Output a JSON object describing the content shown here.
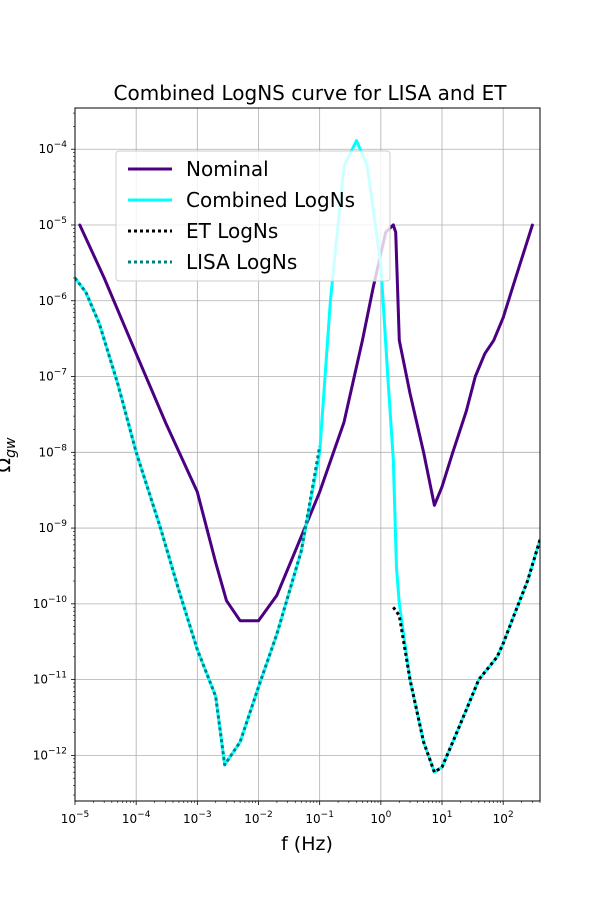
{
  "chart_data": {
    "type": "line",
    "title": "Combined LogNS curve for LISA and ET",
    "xlabel": "f (Hz)",
    "ylabel": "Ω_gw",
    "x_scale": "log",
    "y_scale": "log",
    "xlim": [
      1e-05,
      400
    ],
    "ylim": [
      2.5e-13,
      0.00035
    ],
    "grid": true,
    "legend_position": "upper-left",
    "x_ticks": [
      {
        "value": 1e-05,
        "base": "10",
        "exp": "−5"
      },
      {
        "value": 0.0001,
        "base": "10",
        "exp": "−4"
      },
      {
        "value": 0.001,
        "base": "10",
        "exp": "−3"
      },
      {
        "value": 0.01,
        "base": "10",
        "exp": "−2"
      },
      {
        "value": 0.1,
        "base": "10",
        "exp": "−1"
      },
      {
        "value": 1,
        "base": "10",
        "exp": "0"
      },
      {
        "value": 10,
        "base": "10",
        "exp": "1"
      },
      {
        "value": 100,
        "base": "10",
        "exp": "2"
      }
    ],
    "y_ticks": [
      {
        "value": 1e-12,
        "base": "10",
        "exp": "−12"
      },
      {
        "value": 1e-11,
        "base": "10",
        "exp": "−11"
      },
      {
        "value": 1e-10,
        "base": "10",
        "exp": "−10"
      },
      {
        "value": 1e-09,
        "base": "10",
        "exp": "−9"
      },
      {
        "value": 1e-08,
        "base": "10",
        "exp": "−8"
      },
      {
        "value": 1e-07,
        "base": "10",
        "exp": "−7"
      },
      {
        "value": 1e-06,
        "base": "10",
        "exp": "−6"
      },
      {
        "value": 1e-05,
        "base": "10",
        "exp": "−5"
      },
      {
        "value": 0.0001,
        "base": "10",
        "exp": "−4"
      }
    ],
    "series": [
      {
        "name": "Nominal",
        "color": "#4b0082",
        "style": "solid",
        "segments": [
          [
            [
              1.2e-05,
              1e-05
            ],
            [
              3e-05,
              2e-06
            ],
            [
              0.0001,
              2e-07
            ],
            [
              0.0003,
              2.5e-08
            ],
            [
              0.001,
              3e-09
            ],
            [
              0.002,
              3.5e-10
            ],
            [
              0.003,
              1.1e-10
            ],
            [
              0.005,
              6e-11
            ],
            [
              0.01,
              6e-11
            ],
            [
              0.02,
              1.3e-10
            ],
            [
              0.04,
              5e-10
            ],
            [
              0.1,
              3e-09
            ],
            [
              0.25,
              2.5e-08
            ],
            [
              0.5,
              3e-07
            ],
            [
              0.75,
              1.5e-06
            ],
            [
              1.2,
              8e-06
            ],
            [
              1.6,
              1e-05
            ]
          ],
          [
            [
              1.6,
              1e-05
            ],
            [
              1.75,
              8e-06
            ],
            [
              2,
              3e-07
            ],
            [
              3,
              6e-08
            ],
            [
              5,
              1e-08
            ],
            [
              7.5,
              2e-09
            ],
            [
              10,
              3.5e-09
            ],
            [
              15,
              1e-08
            ],
            [
              25,
              3.5e-08
            ],
            [
              35,
              1e-07
            ],
            [
              50,
              2e-07
            ],
            [
              70,
              3e-07
            ],
            [
              100,
              6e-07
            ],
            [
              150,
              1.7e-06
            ],
            [
              300,
              1e-05
            ]
          ]
        ]
      },
      {
        "name": "Combined LogNs",
        "color": "#00ffff",
        "style": "solid",
        "segments": [
          [
            [
              1e-05,
              2e-06
            ],
            [
              1.5e-05,
              1.3e-06
            ],
            [
              2.5e-05,
              5e-07
            ],
            [
              5e-05,
              8e-08
            ],
            [
              0.0001,
              1e-08
            ],
            [
              0.00025,
              1e-09
            ],
            [
              0.0005,
              1.5e-10
            ],
            [
              0.001,
              2.5e-11
            ],
            [
              0.002,
              6e-12
            ],
            [
              0.0028,
              7.5e-13
            ],
            [
              0.005,
              1.5e-12
            ],
            [
              0.01,
              8e-12
            ],
            [
              0.02,
              4e-11
            ],
            [
              0.05,
              5e-10
            ],
            [
              0.1,
              1e-08
            ],
            [
              0.15,
              1e-06
            ],
            [
              0.25,
              6e-05
            ],
            [
              0.4,
              0.00013
            ],
            [
              0.6,
              6e-05
            ],
            [
              1,
              3e-06
            ],
            [
              1.3,
              1e-07
            ],
            [
              1.6,
              8e-09
            ],
            [
              1.8,
              3e-10
            ],
            [
              2,
              1e-10
            ],
            [
              3,
              1e-11
            ],
            [
              5,
              1.5e-12
            ],
            [
              7.5,
              6e-13
            ],
            [
              10,
              7e-13
            ],
            [
              15,
              1.5e-12
            ],
            [
              25,
              4e-12
            ],
            [
              40,
              1e-11
            ],
            [
              60,
              1.5e-11
            ],
            [
              80,
              2e-11
            ],
            [
              100,
              3e-11
            ],
            [
              150,
              7e-11
            ],
            [
              250,
              2e-10
            ],
            [
              400,
              7e-10
            ]
          ]
        ]
      },
      {
        "name": "ET LogNs",
        "color": "#000000",
        "style": "dotted",
        "segments": [
          [
            [
              1.6,
              9e-11
            ],
            [
              2,
              7e-11
            ],
            [
              3,
              1e-11
            ],
            [
              5,
              1.5e-12
            ],
            [
              7.5,
              6e-13
            ],
            [
              10,
              7e-13
            ],
            [
              15,
              1.5e-12
            ],
            [
              25,
              4e-12
            ],
            [
              40,
              1e-11
            ],
            [
              60,
              1.5e-11
            ],
            [
              80,
              2e-11
            ],
            [
              100,
              3e-11
            ],
            [
              150,
              7e-11
            ],
            [
              250,
              2e-10
            ],
            [
              400,
              7e-10
            ]
          ]
        ]
      },
      {
        "name": "LISA LogNs",
        "color": "#008080",
        "style": "dotted",
        "segments": [
          [
            [
              1e-05,
              2e-06
            ],
            [
              1.5e-05,
              1.3e-06
            ],
            [
              2.5e-05,
              5e-07
            ],
            [
              5e-05,
              8e-08
            ],
            [
              0.0001,
              1e-08
            ],
            [
              0.00025,
              1e-09
            ],
            [
              0.0005,
              1.5e-10
            ],
            [
              0.001,
              2.5e-11
            ],
            [
              0.002,
              6e-12
            ],
            [
              0.0028,
              7.5e-13
            ],
            [
              0.005,
              1.5e-12
            ],
            [
              0.01,
              8e-12
            ],
            [
              0.02,
              4e-11
            ],
            [
              0.05,
              5e-10
            ],
            [
              0.1,
              1.2e-08
            ]
          ]
        ]
      }
    ]
  }
}
